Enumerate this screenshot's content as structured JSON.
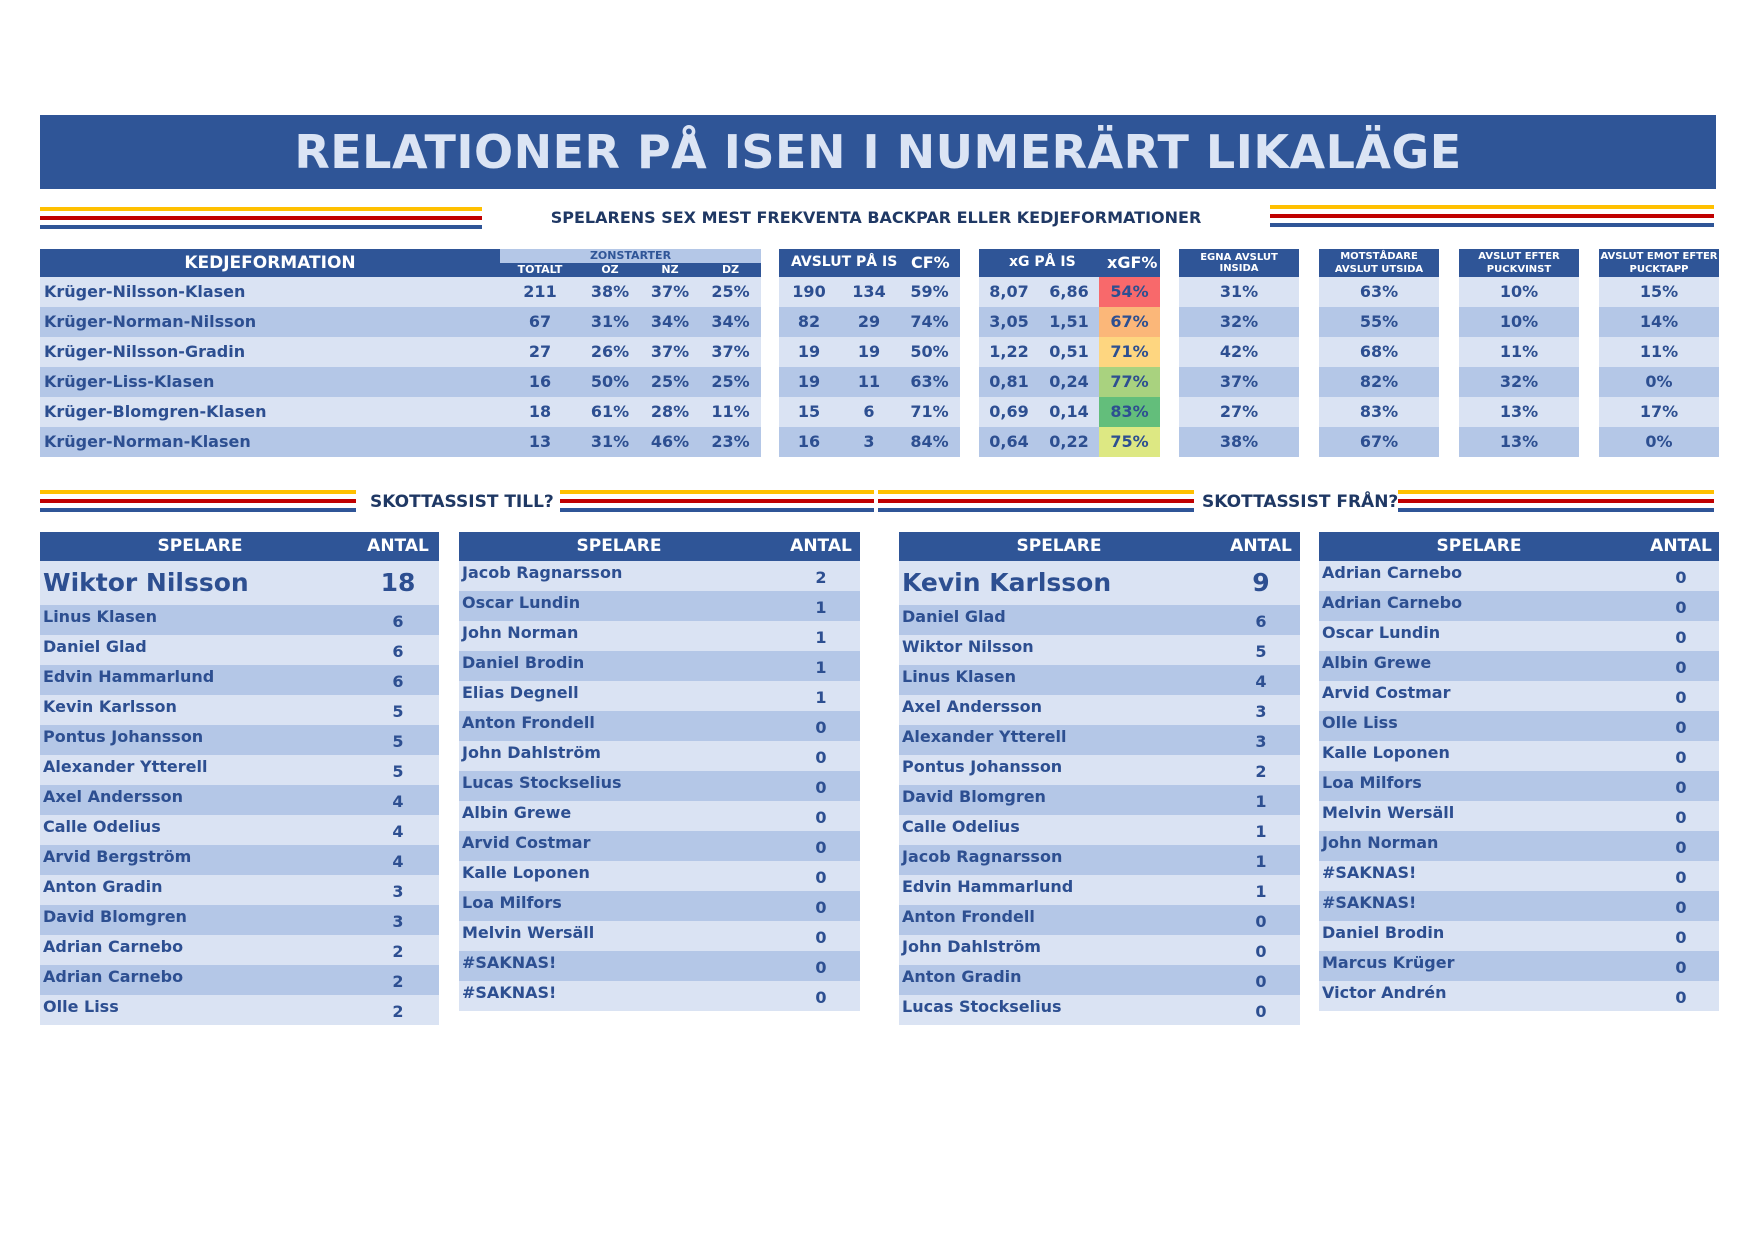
{
  "title": "RELATIONER PÅ ISEN I NUMERÄRT LIKALÄGE",
  "section1_title": "SPELARENS SEX MEST FREKVENTA BACKPAR ELLER KEDJEFORMATIONER",
  "colors": {
    "header": "#2f5597",
    "row_light": "#dae3f3",
    "row_dark": "#b4c7e7",
    "yellow": "#ffc000",
    "red": "#c00000"
  },
  "formation_table": {
    "headers": {
      "kedjeformation": "KEDJEFORMATION",
      "zonstarter": "ZONSTARTER",
      "totalt": "TOTALT",
      "oz": "OZ",
      "nz": "NZ",
      "dz": "DZ",
      "avslut": "AVSLUT PÅ IS",
      "cf": "CF%",
      "xg": "xG PÅ IS",
      "xgf": "xGF%",
      "egna": "EGNA AVSLUT INSIDA",
      "motst": "MOTSTÅDARE AVSLUT UTSIDA",
      "puckvinst": "AVSLUT EFTER PUCKVINST",
      "pucktapp": "AVSLUT EMOT EFTER PUCKTAPP"
    },
    "rows": [
      {
        "name": "Krüger-Nilsson-Klasen",
        "totalt": "211",
        "oz": "38%",
        "nz": "37%",
        "dz": "25%",
        "af": "190",
        "aa": "134",
        "cf": "59%",
        "xgf_v": "8,07",
        "xga_v": "6,86",
        "xgf": "54%",
        "xgf_color": "#f8696b",
        "egna": "31%",
        "motst": "63%",
        "puckvinst": "10%",
        "pucktapp": "15%"
      },
      {
        "name": "Krüger-Norman-Nilsson",
        "totalt": "67",
        "oz": "31%",
        "nz": "34%",
        "dz": "34%",
        "af": "82",
        "aa": "29",
        "cf": "74%",
        "xgf_v": "3,05",
        "xga_v": "1,51",
        "xgf": "67%",
        "xgf_color": "#fbb779",
        "egna": "32%",
        "motst": "55%",
        "puckvinst": "10%",
        "pucktapp": "14%"
      },
      {
        "name": "Krüger-Nilsson-Gradin",
        "totalt": "27",
        "oz": "26%",
        "nz": "37%",
        "dz": "37%",
        "af": "19",
        "aa": "19",
        "cf": "50%",
        "xgf_v": "1,22",
        "xga_v": "0,51",
        "xgf": "71%",
        "xgf_color": "#fed680",
        "egna": "42%",
        "motst": "68%",
        "puckvinst": "11%",
        "pucktapp": "11%"
      },
      {
        "name": "Krüger-Liss-Klasen",
        "totalt": "16",
        "oz": "50%",
        "nz": "25%",
        "dz": "25%",
        "af": "19",
        "aa": "11",
        "cf": "63%",
        "xgf_v": "0,81",
        "xga_v": "0,24",
        "xgf": "77%",
        "xgf_color": "#a9d27f",
        "egna": "37%",
        "motst": "82%",
        "puckvinst": "32%",
        "pucktapp": "0%"
      },
      {
        "name": "Krüger-Blomgren-Klasen",
        "totalt": "18",
        "oz": "61%",
        "nz": "28%",
        "dz": "11%",
        "af": "15",
        "aa": "6",
        "cf": "71%",
        "xgf_v": "0,69",
        "xga_v": "0,14",
        "xgf": "83%",
        "xgf_color": "#63be7b",
        "egna": "27%",
        "motst": "83%",
        "puckvinst": "13%",
        "pucktapp": "17%"
      },
      {
        "name": "Krüger-Norman-Klasen",
        "totalt": "13",
        "oz": "31%",
        "nz": "46%",
        "dz": "23%",
        "af": "16",
        "aa": "3",
        "cf": "84%",
        "xgf_v": "0,64",
        "xga_v": "0,22",
        "xgf": "75%",
        "xgf_color": "#dde883",
        "egna": "38%",
        "motst": "67%",
        "puckvinst": "13%",
        "pucktapp": "0%"
      }
    ]
  },
  "assist_to_title": "SKOTTASSIST TILL?",
  "assist_from_title": "SKOTTASSIST FRÅN?",
  "col_spelare": "SPELARE",
  "col_antal": "ANTAL",
  "assist_to_left": {
    "top": {
      "name": "Wiktor Nilsson",
      "count": "18"
    },
    "rows": [
      {
        "name": "Linus Klasen",
        "count": "6"
      },
      {
        "name": "Daniel Glad",
        "count": "6"
      },
      {
        "name": "Edvin Hammarlund",
        "count": "6"
      },
      {
        "name": "Kevin Karlsson",
        "count": "5"
      },
      {
        "name": "Pontus Johansson",
        "count": "5"
      },
      {
        "name": "Alexander Ytterell",
        "count": "5"
      },
      {
        "name": "Axel Andersson",
        "count": "4"
      },
      {
        "name": "Calle Odelius",
        "count": "4"
      },
      {
        "name": "Arvid Bergström",
        "count": "4"
      },
      {
        "name": "Anton Gradin",
        "count": "3"
      },
      {
        "name": "David Blomgren",
        "count": "3"
      },
      {
        "name": "Adrian Carnebo",
        "count": "2"
      },
      {
        "name": "Adrian Carnebo",
        "count": "2"
      },
      {
        "name": "Olle Liss",
        "count": "2"
      }
    ]
  },
  "assist_to_right": {
    "rows": [
      {
        "name": "Jacob Ragnarsson",
        "count": "2"
      },
      {
        "name": "Oscar Lundin",
        "count": "1"
      },
      {
        "name": "John Norman",
        "count": "1"
      },
      {
        "name": "Daniel Brodin",
        "count": "1"
      },
      {
        "name": "Elias Degnell",
        "count": "1"
      },
      {
        "name": "Anton Frondell",
        "count": "0"
      },
      {
        "name": "John Dahlström",
        "count": "0"
      },
      {
        "name": "Lucas Stockselius",
        "count": "0"
      },
      {
        "name": "Albin Grewe",
        "count": "0"
      },
      {
        "name": "Arvid Costmar",
        "count": "0"
      },
      {
        "name": "Kalle Loponen",
        "count": "0"
      },
      {
        "name": "Loa Milfors",
        "count": "0"
      },
      {
        "name": "Melvin Wersäll",
        "count": "0"
      },
      {
        "name": "#SAKNAS!",
        "count": "0"
      },
      {
        "name": "#SAKNAS!",
        "count": "0"
      }
    ]
  },
  "assist_from_left": {
    "top": {
      "name": "Kevin Karlsson",
      "count": "9"
    },
    "rows": [
      {
        "name": "Daniel Glad",
        "count": "6"
      },
      {
        "name": "Wiktor Nilsson",
        "count": "5"
      },
      {
        "name": "Linus Klasen",
        "count": "4"
      },
      {
        "name": "Axel Andersson",
        "count": "3"
      },
      {
        "name": "Alexander Ytterell",
        "count": "3"
      },
      {
        "name": "Pontus Johansson",
        "count": "2"
      },
      {
        "name": "David Blomgren",
        "count": "1"
      },
      {
        "name": "Calle Odelius",
        "count": "1"
      },
      {
        "name": "Jacob Ragnarsson",
        "count": "1"
      },
      {
        "name": "Edvin Hammarlund",
        "count": "1"
      },
      {
        "name": "Anton Frondell",
        "count": "0"
      },
      {
        "name": "John Dahlström",
        "count": "0"
      },
      {
        "name": "Anton Gradin",
        "count": "0"
      },
      {
        "name": "Lucas Stockselius",
        "count": "0"
      }
    ]
  },
  "assist_from_right": {
    "rows": [
      {
        "name": "Adrian Carnebo",
        "count": "0"
      },
      {
        "name": "Adrian Carnebo",
        "count": "0"
      },
      {
        "name": "Oscar Lundin",
        "count": "0"
      },
      {
        "name": "Albin Grewe",
        "count": "0"
      },
      {
        "name": "Arvid Costmar",
        "count": "0"
      },
      {
        "name": "Olle Liss",
        "count": "0"
      },
      {
        "name": "Kalle Loponen",
        "count": "0"
      },
      {
        "name": "Loa Milfors",
        "count": "0"
      },
      {
        "name": "Melvin Wersäll",
        "count": "0"
      },
      {
        "name": "John Norman",
        "count": "0"
      },
      {
        "name": "#SAKNAS!",
        "count": "0"
      },
      {
        "name": "#SAKNAS!",
        "count": "0"
      },
      {
        "name": "Daniel Brodin",
        "count": "0"
      },
      {
        "name": "Marcus Krüger",
        "count": "0"
      },
      {
        "name": "Victor Andrén",
        "count": "0"
      }
    ]
  }
}
